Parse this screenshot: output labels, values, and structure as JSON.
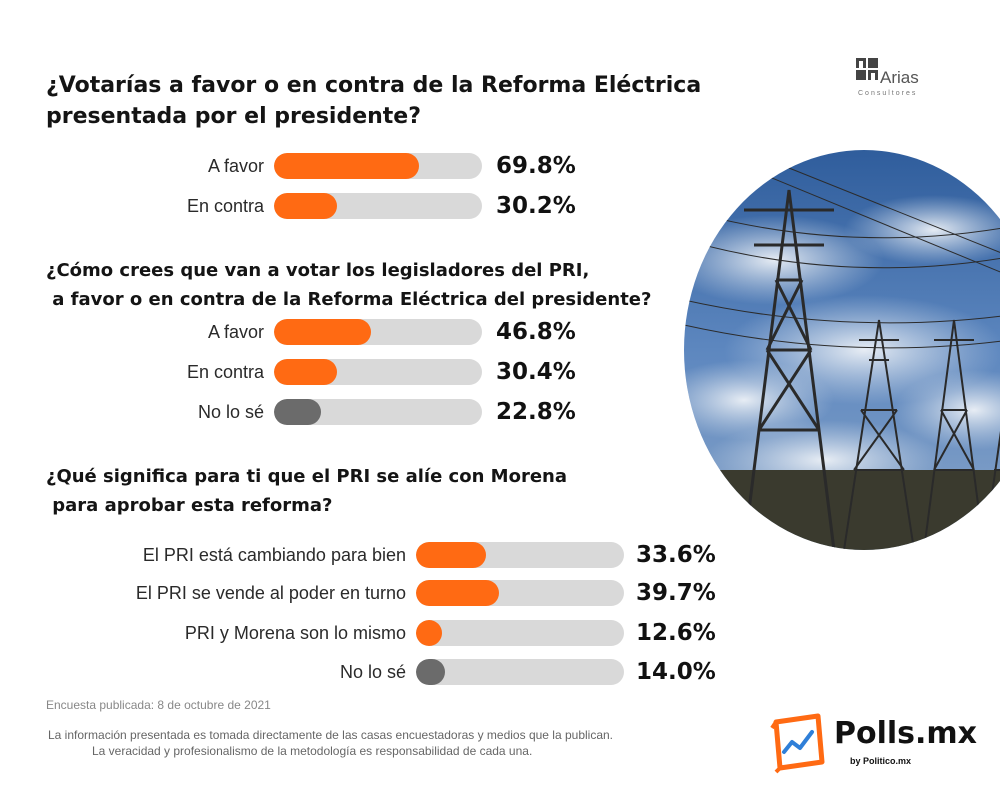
{
  "colors": {
    "orange": "#ff6a13",
    "gray": "#6b6b6b",
    "track": "#d9d9d9"
  },
  "brand": {
    "arias_name": "Arias",
    "arias_sub": "Consultores",
    "polls_name": "Polls.mx",
    "polls_by": "by Politico.mx"
  },
  "chart_data": [
    {
      "type": "bar",
      "title": "¿Votarías a favor o en contra de la Reforma Eléctrica presentada por el presidente?",
      "title_lines": [
        "¿Votarías a favor o en contra de la Reforma Eléctrica",
        "presentada por el presidente?"
      ],
      "categories": [
        "A favor",
        "En contra"
      ],
      "values": [
        69.8,
        30.2
      ],
      "value_labels": [
        "69.8%",
        "30.2%"
      ],
      "colors": [
        "orange",
        "orange"
      ],
      "xlim": [
        0,
        100
      ],
      "unit": "%"
    },
    {
      "type": "bar",
      "title": "¿Cómo crees que van a votar los legisladores del PRI, a favor o en contra de la Reforma Eléctrica del presidente?",
      "title_lines": [
        "¿Cómo crees que van a votar los legisladores del PRI,",
        " a favor o en contra de la Reforma Eléctrica del presidente?"
      ],
      "categories": [
        "A favor",
        "En contra",
        "No lo sé"
      ],
      "values": [
        46.8,
        30.4,
        22.8
      ],
      "value_labels": [
        "46.8%",
        "30.4%",
        "22.8%"
      ],
      "colors": [
        "orange",
        "orange",
        "gray"
      ],
      "xlim": [
        0,
        100
      ],
      "unit": "%"
    },
    {
      "type": "bar",
      "title": "¿Qué significa para ti que el PRI se alíe con Morena para aprobar esta reforma?",
      "title_lines": [
        "¿Qué significa para ti que el PRI se alíe con Morena",
        " para aprobar esta reforma?"
      ],
      "categories": [
        "El PRI está cambiando para bien",
        "El PRI se vende al poder en turno",
        "PRI y Morena son lo mismo",
        "No lo sé"
      ],
      "values": [
        33.6,
        39.7,
        12.6,
        14.0
      ],
      "value_labels": [
        "33.6%",
        "39.7%",
        "12.6%",
        "14.0%"
      ],
      "colors": [
        "orange",
        "orange",
        "orange",
        "gray"
      ],
      "xlim": [
        0,
        100
      ],
      "unit": "%"
    }
  ],
  "footer": {
    "published": "Encuesta publicada: 8 de octubre de 2021",
    "disclaimer_1": "La información presentada es tomada directamente de las casas encuestadoras y medios que la publican.",
    "disclaimer_2": "La veracidad y profesionalismo de la metodología es responsabilidad de cada una."
  }
}
